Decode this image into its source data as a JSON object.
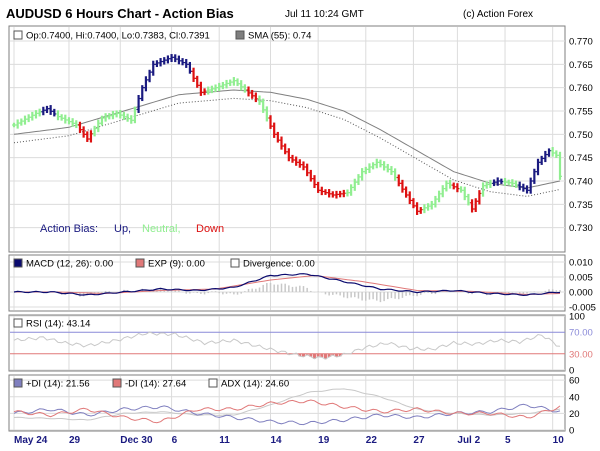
{
  "header": {
    "title": "AUDUSD 6 Hours Chart - Action Bias",
    "timestamp": "Jul 11 10:24 GMT",
    "copyright": "(c) Action Forex"
  },
  "colors": {
    "up": "#1a1a80",
    "neutral": "#90ee90",
    "down": "#dd1111",
    "sma": "#7f7f7f",
    "macd": "#0a0a6e",
    "exp": "#e07878",
    "divergence": "#c8c8c8",
    "rsi": "#c8c8c8",
    "rsi_fill": "#e07878",
    "plus_di": "#7f7fbf",
    "minus_di": "#e07878",
    "adx": "#c8c8c8",
    "grid": "#dcdcdc",
    "panel_border": "#7f7f7f",
    "ref_line_blue": "#8a8ad8",
    "ref_line_red": "#e07878"
  },
  "chart_data": [
    {
      "type": "ohlc",
      "panel": "price",
      "legend": {
        "ohlc_label": "Op:0.7400, Hi:0.7400, Lo:0.7383, Cl:0.7391",
        "sma_label": "SMA (55): 0.74"
      },
      "action_bias": {
        "label": "Action Bias:",
        "up": "Up,",
        "neutral": "Neutral,",
        "down": "Down"
      },
      "ylim": [
        0.725,
        0.773
      ],
      "yticks": [
        "0.770",
        "0.765",
        "0.760",
        "0.755",
        "0.750",
        "0.745",
        "0.740",
        "0.735",
        "0.730"
      ],
      "xlabels": [
        {
          "label": "May 24",
          "bar": 0
        },
        {
          "label": "29",
          "bar": 15
        },
        {
          "label": "Dec 30",
          "bar": 29
        },
        {
          "label": "6",
          "bar": 43
        },
        {
          "label": "11",
          "bar": 56
        },
        {
          "label": "14",
          "bar": 70
        },
        {
          "label": "19",
          "bar": 83
        },
        {
          "label": "22",
          "bar": 96
        },
        {
          "label": "27",
          "bar": 109
        },
        {
          "label": "Jul 2",
          "bar": 121
        },
        {
          "label": "5",
          "bar": 134
        },
        {
          "label": "10",
          "bar": 147
        }
      ],
      "bars_count": 150,
      "close_keypoints": [
        [
          0,
          0.752
        ],
        [
          6,
          0.7545
        ],
        [
          9,
          0.7555
        ],
        [
          12,
          0.7538
        ],
        [
          17,
          0.752
        ],
        [
          20,
          0.749
        ],
        [
          24,
          0.7535
        ],
        [
          28,
          0.7545
        ],
        [
          32,
          0.753
        ],
        [
          35,
          0.76
        ],
        [
          38,
          0.765
        ],
        [
          43,
          0.7665
        ],
        [
          47,
          0.765
        ],
        [
          51,
          0.759
        ],
        [
          55,
          0.76
        ],
        [
          60,
          0.7615
        ],
        [
          63,
          0.7595
        ],
        [
          67,
          0.757
        ],
        [
          71,
          0.75
        ],
        [
          75,
          0.745
        ],
        [
          79,
          0.743
        ],
        [
          83,
          0.738
        ],
        [
          87,
          0.737
        ],
        [
          91,
          0.7375
        ],
        [
          95,
          0.742
        ],
        [
          99,
          0.744
        ],
        [
          103,
          0.742
        ],
        [
          107,
          0.737
        ],
        [
          110,
          0.7335
        ],
        [
          114,
          0.735
        ],
        [
          118,
          0.7395
        ],
        [
          122,
          0.738
        ],
        [
          125,
          0.734
        ],
        [
          128,
          0.739
        ],
        [
          132,
          0.74
        ],
        [
          136,
          0.7395
        ],
        [
          140,
          0.738
        ],
        [
          143,
          0.744
        ],
        [
          146,
          0.7465
        ],
        [
          148,
          0.7455
        ],
        [
          149,
          0.741
        ]
      ],
      "sma_keypoints": [
        [
          0,
          0.75
        ],
        [
          15,
          0.7515
        ],
        [
          30,
          0.755
        ],
        [
          45,
          0.7585
        ],
        [
          60,
          0.7595
        ],
        [
          70,
          0.759
        ],
        [
          80,
          0.7575
        ],
        [
          90,
          0.755
        ],
        [
          100,
          0.751
        ],
        [
          110,
          0.7465
        ],
        [
          120,
          0.742
        ],
        [
          130,
          0.7395
        ],
        [
          140,
          0.7385
        ],
        [
          149,
          0.74
        ]
      ],
      "bias_ranges": [
        {
          "from": 0,
          "to": 7,
          "bias": "neutral"
        },
        {
          "from": 8,
          "to": 11,
          "bias": "up"
        },
        {
          "from": 12,
          "to": 17,
          "bias": "neutral"
        },
        {
          "from": 18,
          "to": 21,
          "bias": "down"
        },
        {
          "from": 22,
          "to": 33,
          "bias": "neutral"
        },
        {
          "from": 34,
          "to": 48,
          "bias": "up"
        },
        {
          "from": 49,
          "to": 52,
          "bias": "down"
        },
        {
          "from": 53,
          "to": 63,
          "bias": "neutral"
        },
        {
          "from": 64,
          "to": 66,
          "bias": "down"
        },
        {
          "from": 67,
          "to": 69,
          "bias": "neutral"
        },
        {
          "from": 70,
          "to": 90,
          "bias": "down"
        },
        {
          "from": 91,
          "to": 104,
          "bias": "neutral"
        },
        {
          "from": 105,
          "to": 111,
          "bias": "down"
        },
        {
          "from": 112,
          "to": 119,
          "bias": "neutral"
        },
        {
          "from": 120,
          "to": 121,
          "bias": "down"
        },
        {
          "from": 122,
          "to": 124,
          "bias": "neutral"
        },
        {
          "from": 125,
          "to": 127,
          "bias": "down"
        },
        {
          "from": 128,
          "to": 130,
          "bias": "neutral"
        },
        {
          "from": 131,
          "to": 133,
          "bias": "up"
        },
        {
          "from": 134,
          "to": 137,
          "bias": "neutral"
        },
        {
          "from": 138,
          "to": 146,
          "bias": "up"
        },
        {
          "from": 147,
          "to": 149,
          "bias": "neutral"
        }
      ]
    },
    {
      "type": "line",
      "panel": "macd",
      "legend": {
        "macd_label": "MACD (12, 26): 0.00",
        "exp_label": "EXP (9): 0.00",
        "div_label": "Divergence: 0.00"
      },
      "ylim": [
        -0.006,
        0.012
      ],
      "yticks": [
        "0.010",
        "0.005",
        "0.000",
        "-0.005"
      ],
      "macd_keypoints": [
        [
          0,
          0.0
        ],
        [
          10,
          0.0
        ],
        [
          20,
          -0.001
        ],
        [
          30,
          0.0
        ],
        [
          40,
          0.001
        ],
        [
          50,
          0.0005
        ],
        [
          60,
          0.0015
        ],
        [
          70,
          0.0055
        ],
        [
          80,
          0.006
        ],
        [
          90,
          0.0035
        ],
        [
          100,
          0.001
        ],
        [
          110,
          0.0
        ],
        [
          120,
          0.0005
        ],
        [
          130,
          -0.0005
        ],
        [
          140,
          -0.001
        ],
        [
          149,
          0.0
        ]
      ],
      "exp_keypoints": [
        [
          0,
          0.0
        ],
        [
          12,
          0.0
        ],
        [
          25,
          -0.0005
        ],
        [
          40,
          0.0005
        ],
        [
          55,
          0.001
        ],
        [
          70,
          0.004
        ],
        [
          82,
          0.0055
        ],
        [
          95,
          0.0035
        ],
        [
          110,
          0.0005
        ],
        [
          125,
          0.0002
        ],
        [
          140,
          -0.0008
        ],
        [
          149,
          -0.0005
        ]
      ]
    },
    {
      "type": "line",
      "panel": "rsi",
      "legend": {
        "rsi_label": "RSI (14): 43.14"
      },
      "ylim": [
        0,
        100
      ],
      "yticks": [
        "100",
        "70.00",
        "30.00",
        "0"
      ],
      "rsi_keypoints": [
        [
          0,
          55
        ],
        [
          8,
          60
        ],
        [
          14,
          50
        ],
        [
          20,
          45
        ],
        [
          28,
          55
        ],
        [
          36,
          68
        ],
        [
          44,
          66
        ],
        [
          52,
          50
        ],
        [
          60,
          55
        ],
        [
          66,
          45
        ],
        [
          72,
          35
        ],
        [
          78,
          27
        ],
        [
          84,
          22
        ],
        [
          90,
          28
        ],
        [
          96,
          42
        ],
        [
          102,
          50
        ],
        [
          108,
          40
        ],
        [
          114,
          38
        ],
        [
          120,
          50
        ],
        [
          126,
          48
        ],
        [
          132,
          55
        ],
        [
          138,
          52
        ],
        [
          144,
          65
        ],
        [
          149,
          43
        ]
      ]
    },
    {
      "type": "line",
      "panel": "dmi",
      "legend": {
        "plus_di_label": "+DI (14): 21.56",
        "minus_di_label": "-DI (14): 27.64",
        "adx_label": "ADX (14): 24.60"
      },
      "ylim": [
        0,
        65
      ],
      "yticks": [
        "60",
        "40",
        "20",
        "0"
      ],
      "plus_di_keypoints": [
        [
          0,
          20
        ],
        [
          10,
          25
        ],
        [
          20,
          18
        ],
        [
          30,
          25
        ],
        [
          40,
          28
        ],
        [
          50,
          20
        ],
        [
          60,
          15
        ],
        [
          70,
          10
        ],
        [
          80,
          8
        ],
        [
          90,
          12
        ],
        [
          100,
          18
        ],
        [
          110,
          15
        ],
        [
          120,
          20
        ],
        [
          130,
          22
        ],
        [
          140,
          30
        ],
        [
          149,
          22
        ]
      ],
      "minus_di_keypoints": [
        [
          0,
          22
        ],
        [
          10,
          18
        ],
        [
          20,
          25
        ],
        [
          30,
          15
        ],
        [
          40,
          10
        ],
        [
          50,
          25
        ],
        [
          60,
          25
        ],
        [
          70,
          32
        ],
        [
          80,
          35
        ],
        [
          90,
          28
        ],
        [
          100,
          22
        ],
        [
          110,
          25
        ],
        [
          120,
          20
        ],
        [
          130,
          20
        ],
        [
          140,
          15
        ],
        [
          149,
          28
        ]
      ],
      "adx_keypoints": [
        [
          0,
          15
        ],
        [
          10,
          14
        ],
        [
          20,
          12
        ],
        [
          30,
          20
        ],
        [
          40,
          22
        ],
        [
          50,
          18
        ],
        [
          60,
          18
        ],
        [
          70,
          30
        ],
        [
          80,
          45
        ],
        [
          90,
          50
        ],
        [
          100,
          40
        ],
        [
          110,
          25
        ],
        [
          120,
          20
        ],
        [
          130,
          18
        ],
        [
          140,
          20
        ],
        [
          149,
          25
        ]
      ]
    }
  ]
}
